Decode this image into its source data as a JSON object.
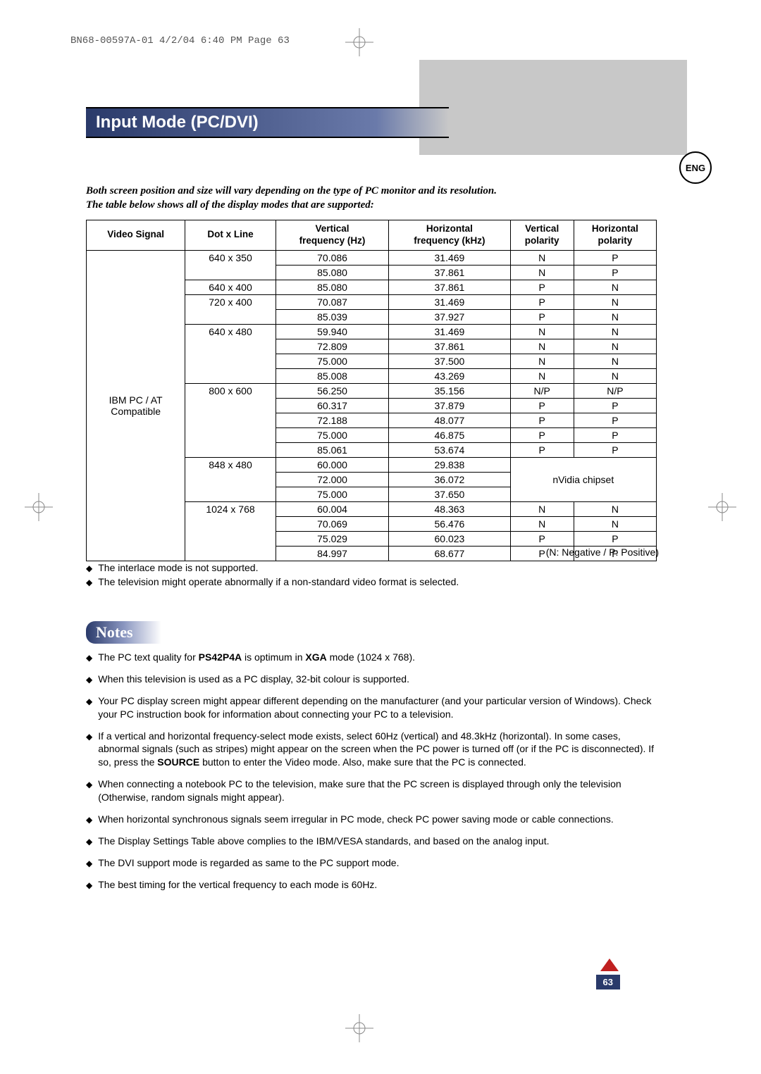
{
  "header_line": "BN68-00597A-01  4/2/04  6:40 PM  Page 63",
  "eng_badge": "ENG",
  "title": "Input Mode (PC/DVI)",
  "intro_line1": "Both screen position and size will vary depending on the type of PC monitor and its resolution.",
  "intro_line2": "The table below shows all of the display modes that are supported:",
  "table": {
    "columns": [
      "Video Signal",
      "Dot x Line",
      "Vertical\nfrequency (Hz)",
      "Horizontal\nfrequency (kHz)",
      "Vertical\npolarity",
      "Horizontal\npolarity"
    ],
    "video_signal_label_line1": "IBM PC / AT",
    "video_signal_label_line2": "Compatible",
    "nvidia_label": "nVidia chipset",
    "groups": [
      {
        "dot": "640 x 350",
        "rows": [
          {
            "vf": "70.086",
            "hf": "31.469",
            "vp": "N",
            "hp": "P"
          },
          {
            "vf": "85.080",
            "hf": "37.861",
            "vp": "N",
            "hp": "P"
          }
        ]
      },
      {
        "dot": "640 x 400",
        "rows": [
          {
            "vf": "85.080",
            "hf": "37.861",
            "vp": "P",
            "hp": "N"
          }
        ]
      },
      {
        "dot": "720 x 400",
        "rows": [
          {
            "vf": "70.087",
            "hf": "31.469",
            "vp": "P",
            "hp": "N"
          },
          {
            "vf": "85.039",
            "hf": "37.927",
            "vp": "P",
            "hp": "N"
          }
        ]
      },
      {
        "dot": "640 x 480",
        "rows": [
          {
            "vf": "59.940",
            "hf": "31.469",
            "vp": "N",
            "hp": "N"
          },
          {
            "vf": "72.809",
            "hf": "37.861",
            "vp": "N",
            "hp": "N"
          },
          {
            "vf": "75.000",
            "hf": "37.500",
            "vp": "N",
            "hp": "N"
          },
          {
            "vf": "85.008",
            "hf": "43.269",
            "vp": "N",
            "hp": "N"
          }
        ]
      },
      {
        "dot": "800 x 600",
        "rows": [
          {
            "vf": "56.250",
            "hf": "35.156",
            "vp": "N/P",
            "hp": "N/P"
          },
          {
            "vf": "60.317",
            "hf": "37.879",
            "vp": "P",
            "hp": "P"
          },
          {
            "vf": "72.188",
            "hf": "48.077",
            "vp": "P",
            "hp": "P"
          },
          {
            "vf": "75.000",
            "hf": "46.875",
            "vp": "P",
            "hp": "P"
          },
          {
            "vf": "85.061",
            "hf": "53.674",
            "vp": "P",
            "hp": "P"
          }
        ]
      },
      {
        "dot": "848 x 480",
        "nvidia": true,
        "rows": [
          {
            "vf": "60.000",
            "hf": "29.838"
          },
          {
            "vf": "72.000",
            "hf": "36.072"
          },
          {
            "vf": "75.000",
            "hf": "37.650"
          }
        ]
      },
      {
        "dot": "1024 x 768",
        "rows": [
          {
            "vf": "60.004",
            "hf": "48.363",
            "vp": "N",
            "hp": "N"
          },
          {
            "vf": "70.069",
            "hf": "56.476",
            "vp": "N",
            "hp": "N"
          },
          {
            "vf": "75.029",
            "hf": "60.023",
            "vp": "P",
            "hp": "P"
          },
          {
            "vf": "84.997",
            "hf": "68.677",
            "vp": "P",
            "hp": "P"
          }
        ]
      }
    ]
  },
  "legend": "(N: Negative / P: Positive)",
  "after_notes": [
    "The interlace mode is not supported.",
    "The television might operate abnormally if a non-standard video format is selected."
  ],
  "notes_title": "Notes",
  "notes": [
    "The PC text quality for <b>PS42P4A</b> is optimum in <b>XGA</b> mode (1024 x 768).",
    "When this television is used as a PC display, 32-bit colour is supported.",
    "Your PC display screen might appear different depending on the manufacturer (and your particular version of Windows). Check your PC instruction book for information about connecting your PC to a television.",
    "If a vertical and horizontal frequency-select mode exists, select 60Hz (vertical) and 48.3kHz (horizontal). In some cases, abnormal signals (such as stripes) might appear on the screen when the PC power is turned off (or if the PC is disconnected). If so, press the <b>SOURCE</b> button to enter the Video mode. Also, make sure that the PC is connected.",
    "When connecting a notebook PC to the television, make sure that the PC screen is displayed through only the television (Otherwise, random signals might appear).",
    "When horizontal synchronous signals seem irregular in PC mode, check PC power saving mode or cable connections.",
    "The Display Settings Table above complies to the IBM/VESA standards, and based on the analog input.",
    "The DVI support mode is regarded as same to the PC support mode.",
    "The best timing for the vertical frequency to each mode is 60Hz."
  ],
  "page_number": "63"
}
